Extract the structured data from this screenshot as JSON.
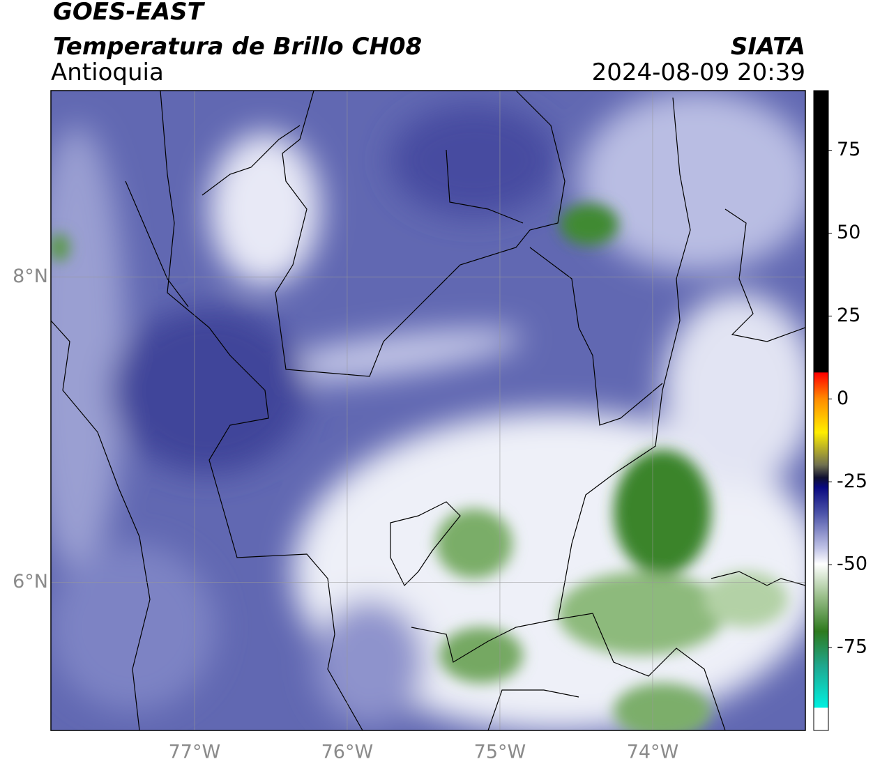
{
  "header": {
    "title": "GOES-EAST",
    "subtitle": "Temperatura de Brillo CH08",
    "region": "Antioquia",
    "source": "SIATA",
    "timestamp": "2024-08-09 20:39"
  },
  "map": {
    "lon_range": [
      -77.94,
      -73.0
    ],
    "lat_range": [
      5.03,
      9.22
    ],
    "lon_ticks": [
      {
        "value": -77,
        "label": "77°W"
      },
      {
        "value": -76,
        "label": "76°W"
      },
      {
        "value": -75,
        "label": "75°W"
      },
      {
        "value": -74,
        "label": "74°W"
      }
    ],
    "lat_ticks": [
      {
        "value": 8,
        "label": "8°N"
      },
      {
        "value": 6,
        "label": "6°N"
      }
    ]
  },
  "colorbar": {
    "range": [
      -100,
      93
    ],
    "ticks": [
      75,
      50,
      25,
      0,
      -25,
      -50,
      -75
    ]
  }
}
